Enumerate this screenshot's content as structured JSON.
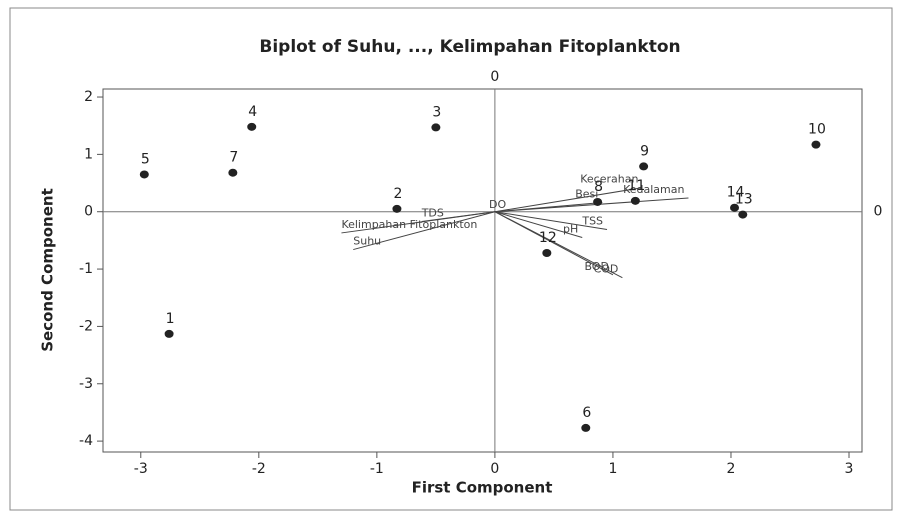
{
  "chart_data": {
    "type": "biplot",
    "title": "Biplot of Suhu, ..., Kelimpahan Fitoplankton",
    "xlabel": "First Component",
    "ylabel": "Second Component",
    "xlim": [
      -3.32,
      3.11
    ],
    "ylim": [
      -4.19,
      2.14
    ],
    "xticks": [
      -3,
      -2,
      -1,
      0,
      1,
      2,
      3
    ],
    "yticks": [
      -4,
      -3,
      -2,
      -1,
      0,
      1,
      2
    ],
    "xref": 0,
    "yref": 0,
    "points": {
      "labels": [
        "1",
        "2",
        "3",
        "4",
        "5",
        "6",
        "7",
        "8",
        "9",
        "10",
        "11",
        "12",
        "13",
        "14"
      ],
      "x": [
        -2.76,
        -0.83,
        -0.5,
        -2.06,
        -2.97,
        0.77,
        -2.22,
        0.87,
        1.26,
        2.72,
        1.19,
        0.44,
        2.1,
        2.03
      ],
      "y": [
        -2.13,
        0.05,
        1.47,
        1.48,
        0.65,
        -3.77,
        0.68,
        0.17,
        0.79,
        1.17,
        0.19,
        -0.72,
        -0.05,
        0.07
      ],
      "color": "#222222"
    },
    "vectors": {
      "labels": [
        "Kecerahan",
        "Kedalaman",
        "Besi",
        "TSS",
        "pH",
        "BOD",
        "COD",
        "DO",
        "TDS",
        "Kelimpahan Fitoplankton",
        "Suhu"
      ],
      "x": [
        1.25,
        1.64,
        0.91,
        0.95,
        0.74,
        1.0,
        1.08,
        -0.05,
        -0.62,
        -1.3,
        -1.2
      ],
      "y": [
        0.42,
        0.24,
        0.16,
        -0.31,
        -0.45,
        -1.1,
        -1.15,
        -0.02,
        -0.17,
        -0.37,
        -0.66
      ],
      "color": "#444444"
    }
  }
}
